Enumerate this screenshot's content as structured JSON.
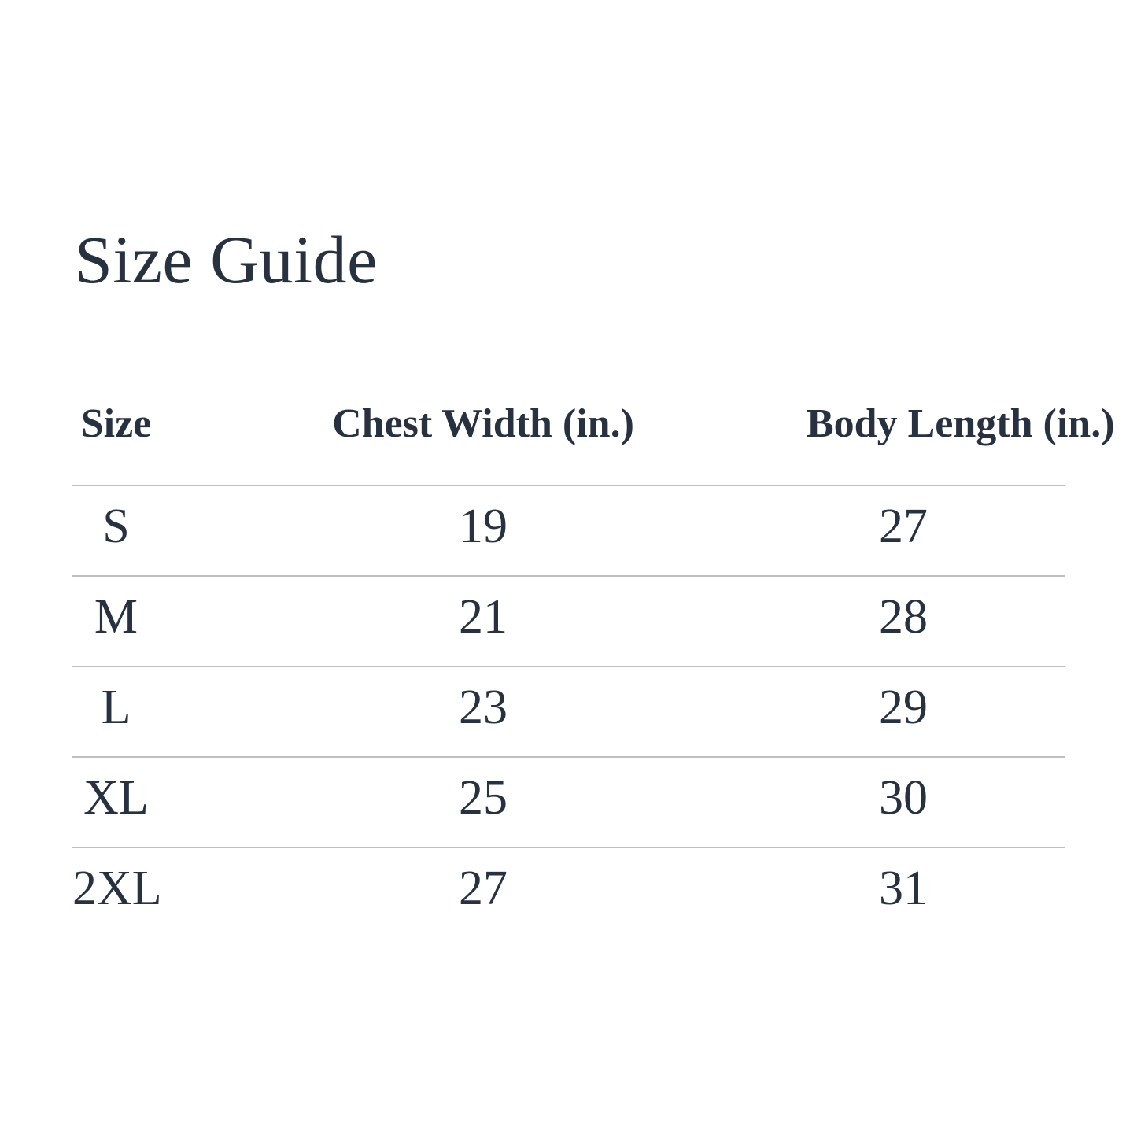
{
  "title": "Size Guide",
  "table": {
    "columns": [
      "Size",
      "Chest Width (in.)",
      "Body Length (in.)"
    ],
    "rows": [
      {
        "size": "S",
        "chest_width_in": "19",
        "body_length_in": "27"
      },
      {
        "size": "M",
        "chest_width_in": "21",
        "body_length_in": "28"
      },
      {
        "size": "L",
        "chest_width_in": "23",
        "body_length_in": "29"
      },
      {
        "size": "XL",
        "chest_width_in": "25",
        "body_length_in": "30"
      },
      {
        "size": "2XL",
        "chest_width_in": "27",
        "body_length_in": "31"
      }
    ]
  },
  "colors": {
    "text": "#273140",
    "divider": "#bfbfbf",
    "background": "#ffffff"
  }
}
